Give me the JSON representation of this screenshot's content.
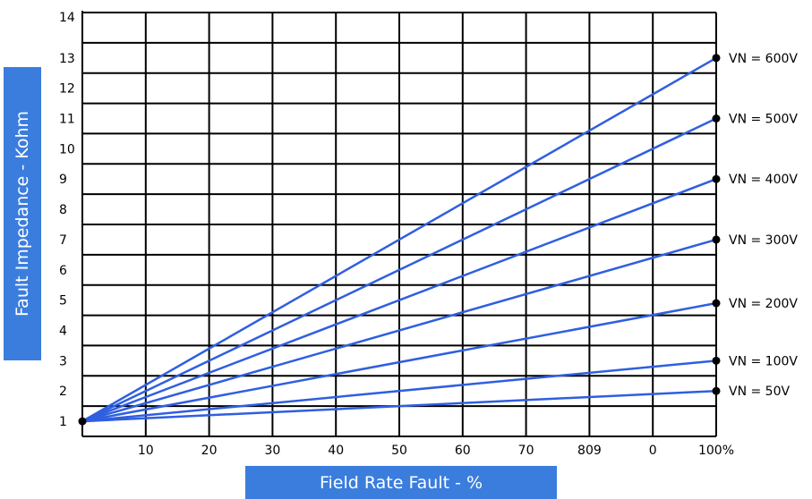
{
  "chart_data": {
    "type": "line",
    "xlabel": "Field Rate Fault - %",
    "ylabel": "Fault Impedance - Kohm",
    "xlim": [
      0,
      100
    ],
    "ylim": [
      0,
      14
    ],
    "grid": true,
    "x_tick_labels": [
      "10",
      "20",
      "30",
      "40",
      "50",
      "60",
      "70",
      "809",
      "0",
      "100%"
    ],
    "y_tick_labels": [
      "1",
      "2",
      "3",
      "4",
      "5",
      "6",
      "7",
      "8",
      "9",
      "10",
      "11",
      "12",
      "13",
      "14"
    ],
    "line_color": "#2f5fe0",
    "marker_color": "#000000",
    "origin": {
      "x": 0,
      "y": 0.5
    },
    "series": [
      {
        "name": "VN = 600V",
        "x": [
          0,
          100
        ],
        "y": [
          0.5,
          12.5
        ]
      },
      {
        "name": "VN = 500V",
        "x": [
          0,
          100
        ],
        "y": [
          0.5,
          10.5
        ]
      },
      {
        "name": "VN = 400V",
        "x": [
          0,
          100
        ],
        "y": [
          0.5,
          8.5
        ]
      },
      {
        "name": "VN = 300V",
        "x": [
          0,
          100
        ],
        "y": [
          0.5,
          6.5
        ]
      },
      {
        "name": "VN = 200V",
        "x": [
          0,
          100
        ],
        "y": [
          0.5,
          4.4
        ]
      },
      {
        "name": "VN = 100V",
        "x": [
          0,
          100
        ],
        "y": [
          0.5,
          2.5
        ]
      },
      {
        "name": "VN = 50V",
        "x": [
          0,
          100
        ],
        "y": [
          0.5,
          1.5
        ]
      }
    ]
  }
}
